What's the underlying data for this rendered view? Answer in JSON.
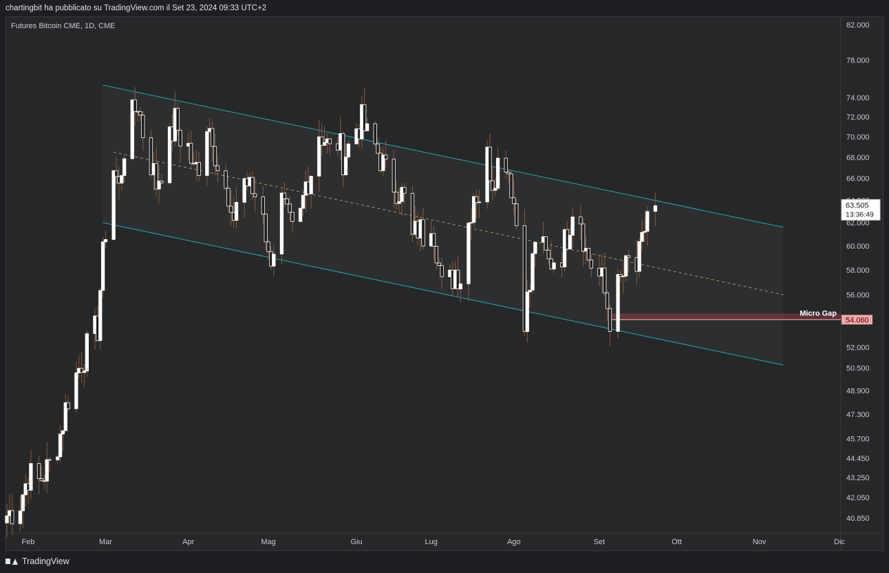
{
  "header": {
    "publish_text": "chartingbit ha pubblicato su TradingView.com il Set 23, 2024 09:33 UTC+2"
  },
  "symbol": {
    "legend": "Futures Bitcoin CME, 1D, CME"
  },
  "footer": {
    "brand": "TradingView"
  },
  "colors": {
    "background": "#262728",
    "candle_up": "#ffffff",
    "candle_down": "#1e1e1e",
    "wick": "#8a5a3a",
    "channel": "#26a6b5",
    "midline": "#c9b27a",
    "gap": "#f4a6a6"
  },
  "chart_data": {
    "type": "candlestick",
    "title": "Futures Bitcoin CME, 1D, CME",
    "y_axis": {
      "ticks": [
        "82.000",
        "78.000",
        "74.000",
        "72.000",
        "70.000",
        "68.000",
        "66.000",
        "64.000",
        "62.000",
        "60.000",
        "58.000",
        "56.000",
        "54.000",
        "52.000",
        "50.500",
        "48.900",
        "47.300",
        "45.700",
        "44.450",
        "43.250",
        "42.050",
        "40.850"
      ],
      "tick_values": [
        82000,
        78000,
        74000,
        72000,
        70000,
        68000,
        66000,
        64000,
        62000,
        60000,
        58000,
        56000,
        54000,
        52000,
        50500,
        48900,
        47300,
        45700,
        44450,
        43250,
        42050,
        40850
      ],
      "scale": "log",
      "range": [
        39800,
        84000
      ],
      "position": "right"
    },
    "x_axis": {
      "range": [
        "2024-01-24",
        "2024-12-01"
      ],
      "month_labels": [
        {
          "label": "Feb",
          "date": "2024-02-01"
        },
        {
          "label": "Mar",
          "date": "2024-03-01"
        },
        {
          "label": "Apr",
          "date": "2024-04-01"
        },
        {
          "label": "Mag",
          "date": "2024-05-01"
        },
        {
          "label": "Giu",
          "date": "2024-06-03"
        },
        {
          "label": "Lug",
          "date": "2024-07-01"
        },
        {
          "label": "Ago",
          "date": "2024-08-01"
        },
        {
          "label": "Set",
          "date": "2024-09-02"
        },
        {
          "label": "Ott",
          "date": "2024-10-01"
        },
        {
          "label": "Nov",
          "date": "2024-11-01"
        },
        {
          "label": "Dic",
          "date": "2024-12-01"
        }
      ]
    },
    "series": [
      {
        "close_points": [
          [
            "2024-01-24",
            41000
          ],
          [
            "2024-01-29",
            41800
          ],
          [
            "2024-02-01",
            43400
          ],
          [
            "2024-02-05",
            43000
          ],
          [
            "2024-02-09",
            44000
          ],
          [
            "2024-02-13",
            46000
          ],
          [
            "2024-02-16",
            48500
          ],
          [
            "2024-02-21",
            51000
          ],
          [
            "2024-02-24",
            52300
          ],
          [
            "2024-02-27",
            53500
          ],
          [
            "2024-02-28",
            56500
          ],
          [
            "2024-02-29",
            59000
          ],
          [
            "2024-03-01",
            61500
          ],
          [
            "2024-03-02",
            63000
          ],
          [
            "2024-03-04",
            67000
          ],
          [
            "2024-03-06",
            65000
          ],
          [
            "2024-03-08",
            69000
          ],
          [
            "2024-03-11",
            72000
          ],
          [
            "2024-03-13",
            73500
          ],
          [
            "2024-03-15",
            70500
          ],
          [
            "2024-03-18",
            67500
          ],
          [
            "2024-03-20",
            65500
          ],
          [
            "2024-03-22",
            67000
          ],
          [
            "2024-03-25",
            69500
          ],
          [
            "2024-03-27",
            71500
          ],
          [
            "2024-03-29",
            70000
          ],
          [
            "2024-04-01",
            69000
          ],
          [
            "2024-04-03",
            66500
          ],
          [
            "2024-04-05",
            67500
          ],
          [
            "2024-04-08",
            71500
          ],
          [
            "2024-04-10",
            70500
          ],
          [
            "2024-04-12",
            67000
          ],
          [
            "2024-04-15",
            64500
          ],
          [
            "2024-04-17",
            61500
          ],
          [
            "2024-04-19",
            64000
          ],
          [
            "2024-04-22",
            66000
          ],
          [
            "2024-04-24",
            65000
          ],
          [
            "2024-04-26",
            64500
          ],
          [
            "2024-04-29",
            63500
          ],
          [
            "2024-05-01",
            58800
          ],
          [
            "2024-05-03",
            60000
          ],
          [
            "2024-05-06",
            63800
          ],
          [
            "2024-05-08",
            62200
          ],
          [
            "2024-05-10",
            61000
          ],
          [
            "2024-05-13",
            62500
          ],
          [
            "2024-05-15",
            65500
          ],
          [
            "2024-05-17",
            66800
          ],
          [
            "2024-05-20",
            70500
          ],
          [
            "2024-05-22",
            69800
          ],
          [
            "2024-05-24",
            68500
          ],
          [
            "2024-05-27",
            69500
          ],
          [
            "2024-05-29",
            68000
          ],
          [
            "2024-05-31",
            69000
          ],
          [
            "2024-06-03",
            71000
          ],
          [
            "2024-06-05",
            71500
          ],
          [
            "2024-06-07",
            70000
          ],
          [
            "2024-06-10",
            69000
          ],
          [
            "2024-06-12",
            68000
          ],
          [
            "2024-06-14",
            66500
          ],
          [
            "2024-06-17",
            65500
          ],
          [
            "2024-06-19",
            65000
          ],
          [
            "2024-06-21",
            64000
          ],
          [
            "2024-06-24",
            60500
          ],
          [
            "2024-06-26",
            61500
          ],
          [
            "2024-06-28",
            61000
          ],
          [
            "2024-07-01",
            62500
          ],
          [
            "2024-07-03",
            60000
          ],
          [
            "2024-07-05",
            56500
          ],
          [
            "2024-07-08",
            57000
          ],
          [
            "2024-07-10",
            58000
          ],
          [
            "2024-07-12",
            57500
          ],
          [
            "2024-07-15",
            62000
          ],
          [
            "2024-07-17",
            64800
          ],
          [
            "2024-07-19",
            64500
          ],
          [
            "2024-07-22",
            68000
          ],
          [
            "2024-07-24",
            66000
          ],
          [
            "2024-07-26",
            67500
          ],
          [
            "2024-07-29",
            68000
          ],
          [
            "2024-07-31",
            65500
          ],
          [
            "2024-08-02",
            62000
          ],
          [
            "2024-08-05",
            54500
          ],
          [
            "2024-08-07",
            56500
          ],
          [
            "2024-08-09",
            60800
          ],
          [
            "2024-08-12",
            59500
          ],
          [
            "2024-08-14",
            58500
          ],
          [
            "2024-08-16",
            59000
          ],
          [
            "2024-08-19",
            59500
          ],
          [
            "2024-08-21",
            61000
          ],
          [
            "2024-08-23",
            63500
          ],
          [
            "2024-08-26",
            62500
          ],
          [
            "2024-08-28",
            59500
          ],
          [
            "2024-08-30",
            58500
          ],
          [
            "2024-09-03",
            57000
          ],
          [
            "2024-09-06",
            54200
          ],
          [
            "2024-09-09",
            56500
          ],
          [
            "2024-09-11",
            57500
          ],
          [
            "2024-09-13",
            58500
          ],
          [
            "2024-09-16",
            58000
          ],
          [
            "2024-09-18",
            60000
          ],
          [
            "2024-09-20",
            63000
          ],
          [
            "2024-09-23",
            63505
          ]
        ]
      }
    ],
    "channel": {
      "upper": {
        "start": [
          "2024-02-29",
          75300
        ],
        "end": [
          "2024-11-10",
          61600
        ]
      },
      "middle": {
        "start": [
          "2024-03-04",
          68500
        ],
        "end": [
          "2024-11-10",
          56000
        ]
      },
      "lower": {
        "start": [
          "2024-02-29",
          62000
        ],
        "end": [
          "2024-11-10",
          50700
        ]
      }
    },
    "annotations": [
      {
        "label": "Micro Gap",
        "price": 54060,
        "price_label": "54.060",
        "from": "2024-09-06",
        "to": "2024-12-01"
      }
    ],
    "last_price": {
      "value": "63.505",
      "countdown": "13:36:49",
      "price": 63505
    },
    "grid": false,
    "legend": "top-left"
  }
}
